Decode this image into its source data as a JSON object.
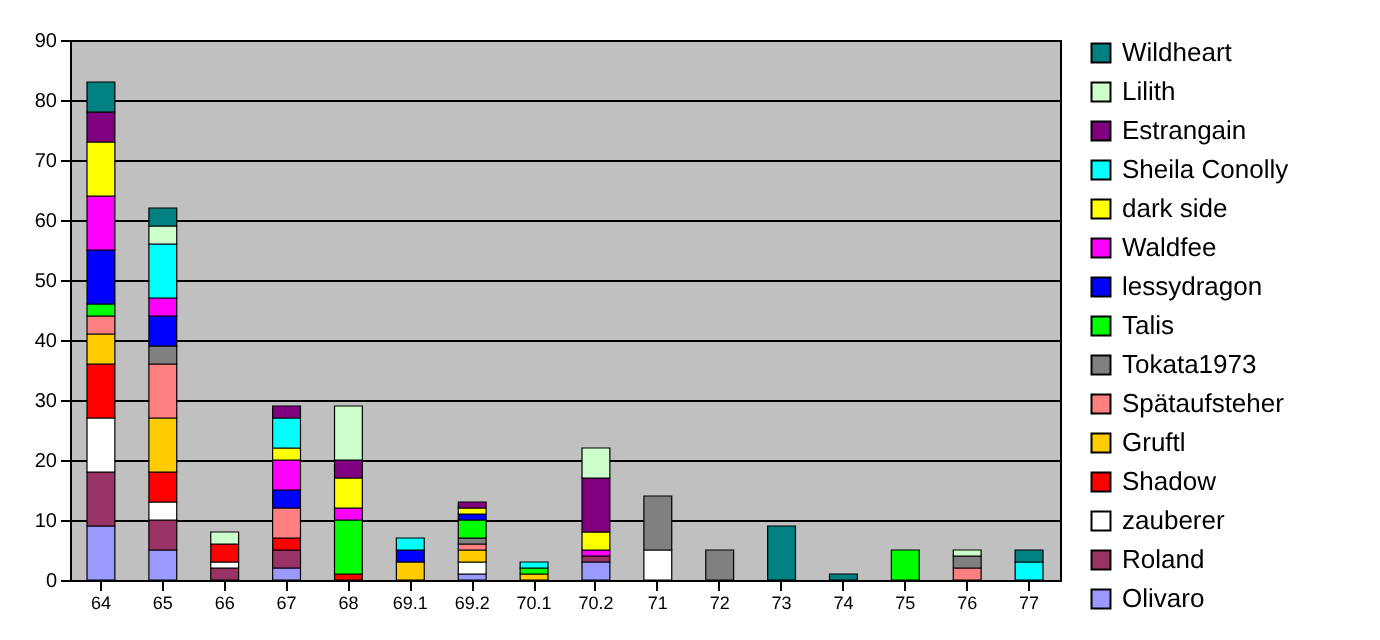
{
  "chart_data": {
    "type": "bar",
    "stacked": true,
    "categories": [
      "64",
      "65",
      "66",
      "67",
      "68",
      "69.1",
      "69.2",
      "70.1",
      "70.2",
      "71",
      "72",
      "73",
      "74",
      "75",
      "76",
      "77"
    ],
    "series": [
      {
        "name": "Olivaro",
        "color": "#9999ff",
        "values": [
          9,
          5,
          null,
          2,
          null,
          null,
          1,
          null,
          3,
          null,
          null,
          null,
          null,
          null,
          null,
          null
        ]
      },
      {
        "name": "Roland",
        "color": "#993366",
        "values": [
          9,
          5,
          2,
          3,
          null,
          null,
          null,
          null,
          1,
          null,
          null,
          null,
          null,
          null,
          null,
          null
        ]
      },
      {
        "name": "zauberer",
        "color": "#ffffff",
        "values": [
          9,
          3,
          1,
          null,
          null,
          null,
          2,
          null,
          null,
          5,
          null,
          null,
          null,
          null,
          null,
          null
        ]
      },
      {
        "name": "Shadow",
        "color": "#ff0000",
        "values": [
          9,
          5,
          3,
          2,
          1,
          null,
          null,
          null,
          null,
          null,
          null,
          null,
          null,
          null,
          null,
          null
        ]
      },
      {
        "name": "Gruftl",
        "color": "#ffcc00",
        "values": [
          5,
          9,
          null,
          null,
          null,
          3,
          2,
          1,
          null,
          null,
          null,
          null,
          null,
          null,
          null,
          null
        ]
      },
      {
        "name": "Spätaufsteher",
        "color": "#ff8080",
        "values": [
          3,
          9,
          null,
          5,
          null,
          null,
          1,
          null,
          null,
          null,
          null,
          null,
          null,
          null,
          2,
          null
        ]
      },
      {
        "name": "Tokata1973",
        "color": "#808080",
        "values": [
          null,
          3,
          null,
          null,
          null,
          null,
          1,
          null,
          null,
          9,
          5,
          null,
          null,
          null,
          2,
          null
        ]
      },
      {
        "name": "Talis",
        "color": "#00ff00",
        "values": [
          2,
          null,
          null,
          null,
          9,
          null,
          3,
          1,
          null,
          null,
          null,
          null,
          null,
          5,
          null,
          null
        ]
      },
      {
        "name": "lessydragon",
        "color": "#0000ff",
        "values": [
          9,
          5,
          null,
          3,
          null,
          2,
          1,
          null,
          null,
          null,
          null,
          null,
          null,
          null,
          null,
          null
        ]
      },
      {
        "name": "Waldfee",
        "color": "#ff00ff",
        "values": [
          9,
          3,
          null,
          5,
          2,
          null,
          null,
          null,
          1,
          null,
          null,
          null,
          null,
          null,
          null,
          null
        ]
      },
      {
        "name": "dark side",
        "color": "#ffff00",
        "values": [
          9,
          null,
          null,
          2,
          5,
          null,
          1,
          null,
          3,
          null,
          null,
          null,
          null,
          null,
          null,
          null
        ]
      },
      {
        "name": "Sheila Conolly",
        "color": "#00ffff",
        "values": [
          null,
          9,
          null,
          5,
          null,
          2,
          null,
          1,
          null,
          null,
          null,
          null,
          null,
          null,
          null,
          3
        ]
      },
      {
        "name": "Estrangain",
        "color": "#800080",
        "values": [
          5,
          null,
          null,
          2,
          3,
          null,
          1,
          null,
          9,
          null,
          null,
          null,
          null,
          null,
          null,
          null
        ]
      },
      {
        "name": "Lilith",
        "color": "#ccffcc",
        "values": [
          null,
          3,
          2,
          null,
          9,
          null,
          null,
          null,
          5,
          null,
          null,
          null,
          null,
          null,
          1,
          null
        ]
      },
      {
        "name": "Wildheart",
        "color": "#008080",
        "values": [
          5,
          3,
          null,
          null,
          null,
          null,
          null,
          null,
          null,
          null,
          null,
          9,
          1,
          null,
          null,
          2
        ]
      }
    ],
    "ylim": [
      0,
      90
    ],
    "yticks": [
      0,
      10,
      20,
      30,
      40,
      50,
      60,
      70,
      80,
      90
    ],
    "grid": "y",
    "legend": "right"
  }
}
